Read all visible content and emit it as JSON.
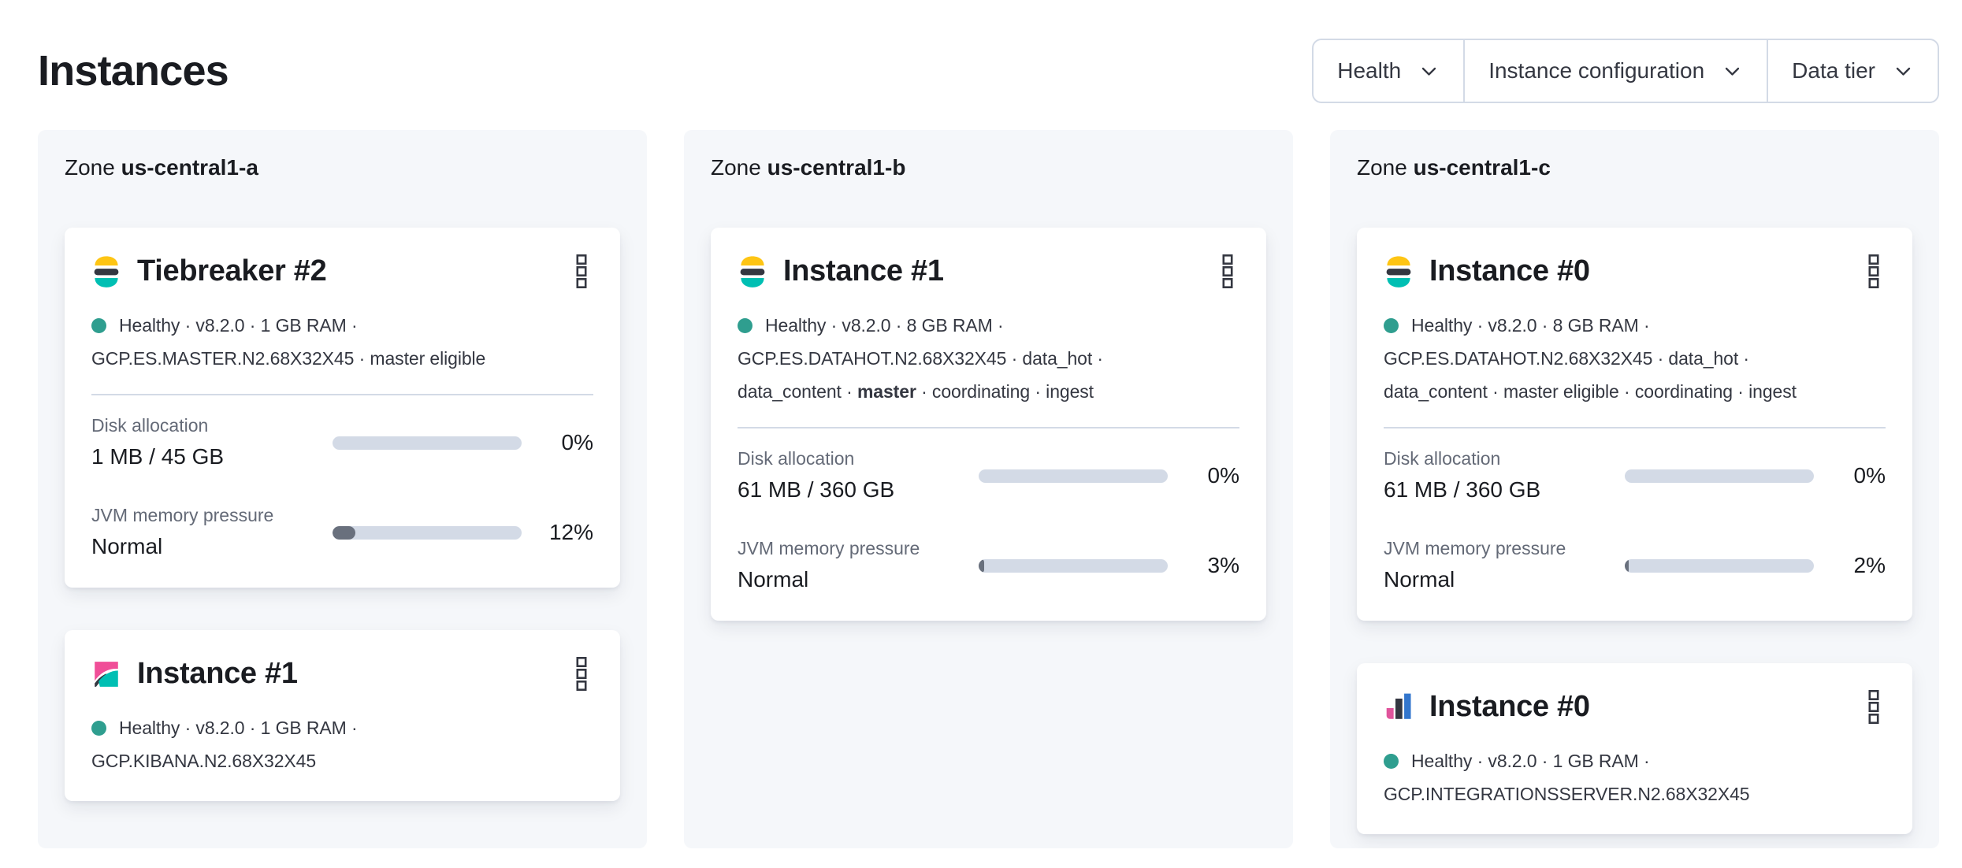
{
  "page": {
    "title": "Instances"
  },
  "filters": {
    "items": [
      {
        "label": "Health"
      },
      {
        "label": "Instance configuration"
      },
      {
        "label": "Data tier"
      }
    ]
  },
  "colors": {
    "panel_background": "#f5f7fa",
    "card_background": "#ffffff",
    "text_dark": "#1a1c21",
    "text_mid": "#343741",
    "text_subdued": "#646a77",
    "border": "#d3dae6",
    "health_dot": "#2f9e8f",
    "progress_track": "#d3dae6",
    "progress_fill": "#69707d",
    "logo_yellow": "#fec514",
    "logo_dark": "#343741",
    "logo_teal": "#00bfb3",
    "logo_pink": "#f04e98",
    "logo_blue": "#3376cd"
  },
  "zones": [
    {
      "label": "Zone",
      "name": "us-central1-a",
      "cards": [
        {
          "icon": "elasticsearch-logo",
          "title": "Tiebreaker #2",
          "status": "Healthy · v8.2.0 · 1 GB RAM ·",
          "config": [
            {
              "pre": "GCP.ES.MASTER.N2.68X32X45 · master eligible",
              "bold": "",
              "post": ""
            }
          ],
          "metrics": [
            {
              "label": "Disk allocation",
              "value": "1 MB / 45 GB",
              "percent": 0,
              "percent_label": "0%"
            },
            {
              "label": "JVM memory pressure",
              "value": "Normal",
              "percent": 12,
              "percent_label": "12%"
            }
          ]
        },
        {
          "icon": "kibana-logo",
          "title": "Instance #1",
          "status": "Healthy · v8.2.0 · 1 GB RAM ·",
          "config": [
            {
              "pre": "GCP.KIBANA.N2.68X32X45",
              "bold": "",
              "post": ""
            }
          ]
        }
      ]
    },
    {
      "label": "Zone",
      "name": "us-central1-b",
      "cards": [
        {
          "icon": "elasticsearch-logo",
          "title": "Instance #1",
          "status": "Healthy · v8.2.0 · 8 GB RAM ·",
          "config": [
            {
              "pre": "GCP.ES.DATAHOT.N2.68X32X45 · data_hot ·",
              "bold": "",
              "post": ""
            },
            {
              "pre": "data_content · ",
              "bold": "master",
              "post": " · coordinating · ingest"
            }
          ],
          "metrics": [
            {
              "label": "Disk allocation",
              "value": "61 MB / 360 GB",
              "percent": 0,
              "percent_label": "0%"
            },
            {
              "label": "JVM memory pressure",
              "value": "Normal",
              "percent": 3,
              "percent_label": "3%"
            }
          ]
        }
      ]
    },
    {
      "label": "Zone",
      "name": "us-central1-c",
      "cards": [
        {
          "icon": "elasticsearch-logo",
          "title": "Instance #0",
          "status": "Healthy · v8.2.0 · 8 GB RAM ·",
          "config": [
            {
              "pre": "GCP.ES.DATAHOT.N2.68X32X45 · data_hot ·",
              "bold": "",
              "post": ""
            },
            {
              "pre": "data_content · master eligible · coordinating · ingest",
              "bold": "",
              "post": ""
            }
          ],
          "metrics": [
            {
              "label": "Disk allocation",
              "value": "61 MB / 360 GB",
              "percent": 0,
              "percent_label": "0%"
            },
            {
              "label": "JVM memory pressure",
              "value": "Normal",
              "percent": 2,
              "percent_label": "2%"
            }
          ]
        },
        {
          "icon": "integrations-server-logo",
          "title": "Instance #0",
          "status": "Healthy · v8.2.0 · 1 GB RAM ·",
          "config": [
            {
              "pre": "GCP.INTEGRATIONSSERVER.N2.68X32X45",
              "bold": "",
              "post": ""
            }
          ]
        }
      ]
    }
  ]
}
